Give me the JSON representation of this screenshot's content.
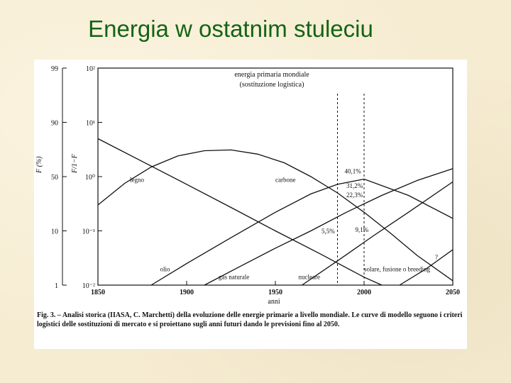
{
  "slide_title": "Energia w ostatnim stuleciu",
  "chart_data": {
    "type": "line",
    "title": "energia primaria mondiale",
    "subtitle": "(sostituzione logistica)",
    "xlabel": "anni",
    "x_ticks": [
      "1850",
      "1900",
      "1950",
      "2000",
      "2050"
    ],
    "xlim": [
      1850,
      2050
    ],
    "y_scale": "logit",
    "ylim": [
      0.01,
      100
    ],
    "y_ticks_left_label": "F (%)",
    "y_ticks_left": [
      "99",
      "90",
      "50",
      "10",
      "1"
    ],
    "y_ticks_right_label": "F/1−F",
    "y_ticks_right": [
      "10²",
      "10¹",
      "10⁰",
      "10⁻¹",
      "10⁻²"
    ],
    "y_tick_values": [
      100,
      10,
      1,
      0.1,
      0.01
    ],
    "grid": false,
    "vertical_markers": [
      1985,
      2000
    ],
    "series": [
      {
        "name": "legno",
        "x": [
          1850,
          1875,
          1900,
          1925,
          1950,
          1975,
          2000,
          2010
        ],
        "y": [
          5.0,
          1.9,
          0.72,
          0.27,
          0.1,
          0.038,
          0.014,
          0.01
        ]
      },
      {
        "name": "carbone",
        "x": [
          1850,
          1865,
          1880,
          1895,
          1910,
          1925,
          1940,
          1955,
          1970,
          1985,
          2000,
          2015,
          2030,
          2050
        ],
        "y": [
          0.3,
          0.75,
          1.5,
          2.4,
          3.0,
          3.1,
          2.6,
          1.8,
          1.0,
          0.5,
          0.22,
          0.09,
          0.035,
          0.012
        ]
      },
      {
        "name": "olio",
        "x": [
          1880,
          1900,
          1925,
          1950,
          1970,
          1985,
          2000,
          2025,
          2050
        ],
        "y": [
          0.01,
          0.025,
          0.075,
          0.22,
          0.48,
          0.72,
          0.9,
          0.45,
          0.17
        ]
      },
      {
        "name": "gas naturale",
        "x": [
          1910,
          1930,
          1950,
          1970,
          1990,
          2010,
          2030,
          2050
        ],
        "y": [
          0.01,
          0.022,
          0.048,
          0.1,
          0.22,
          0.45,
          0.85,
          1.4
        ]
      },
      {
        "name": "nucleare",
        "x": [
          1965,
          1985,
          2005,
          2025,
          2050
        ],
        "y": [
          0.01,
          0.028,
          0.08,
          0.22,
          0.8
        ]
      },
      {
        "name": "solare, fusione o breeding",
        "x": [
          2020,
          2035,
          2050
        ],
        "y": [
          0.01,
          0.02,
          0.045
        ]
      }
    ],
    "annotations": [
      "40,1%",
      "31,2%",
      "22,3%",
      "5,5%",
      "9,1%",
      "?"
    ],
    "legend": "none"
  },
  "caption": {
    "fig_label": "Fig. 3.",
    "text": "– Analisi storica (IIASA, C. Marchetti) della evoluzione delle energie primarie a livello mondiale. Le curve di modello seguono i criteri logistici delle sostituzioni di mercato e si proiettano sugli anni futuri dando le previsioni fino al 2050."
  }
}
